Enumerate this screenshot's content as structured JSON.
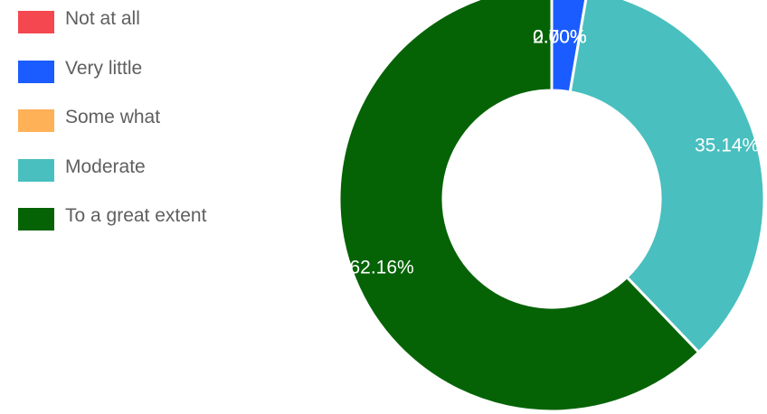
{
  "chart_data": {
    "type": "pie",
    "donut": true,
    "legend_position": "left",
    "categories": [
      "Not at all",
      "Very little",
      "Some what",
      "Moderate",
      "To a great extent"
    ],
    "values": [
      0.0,
      2.7,
      0.0,
      35.14,
      62.16
    ],
    "data_labels": [
      "0.00%",
      "2.70%",
      "0.00%",
      "35.14%",
      "62.16%"
    ],
    "colors": [
      "#f4474f",
      "#1a5cff",
      "#ffb158",
      "#49bfbf",
      "#056305"
    ]
  }
}
